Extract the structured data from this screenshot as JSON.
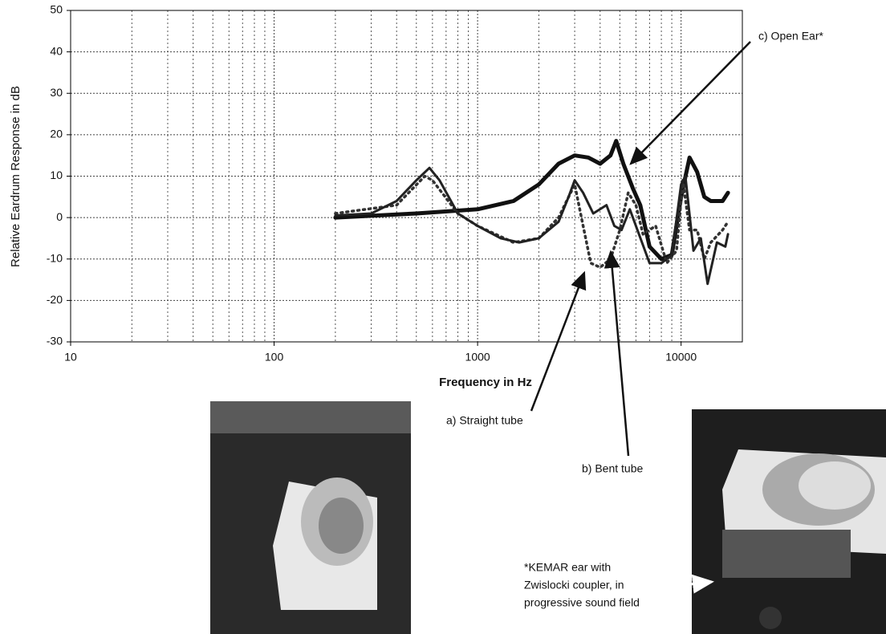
{
  "chart_data": {
    "type": "line",
    "x_label": "Frequency in Hz",
    "y_label": "Relative Eardrum Response in dB",
    "log_x": true,
    "grid": true,
    "minor_grid": true,
    "xlim": [
      10,
      20000
    ],
    "ylim": [
      -30,
      50
    ],
    "xticks": [
      10,
      100,
      1000,
      10000
    ],
    "yticks": [
      -30,
      -20,
      -10,
      0,
      10,
      20,
      30,
      40,
      50
    ],
    "series": [
      {
        "name": "c) Open Ear*",
        "color": "#111111",
        "width": 5,
        "dashed": false,
        "x": [
          200,
          500,
          1000,
          1500,
          2000,
          2500,
          3000,
          3500,
          4000,
          4500,
          4800,
          5200,
          5800,
          6300,
          7000,
          8000,
          9000,
          10000,
          11000,
          12000,
          13000,
          14000,
          16000,
          17000
        ],
        "values": [
          0,
          1,
          2,
          4,
          8,
          13,
          15,
          14.5,
          13,
          15,
          18.5,
          13,
          7,
          3,
          -7,
          -10,
          -9,
          5,
          14.5,
          11,
          5,
          4,
          4,
          6
        ]
      },
      {
        "name": "a) Straight tube",
        "color": "#333333",
        "width": 3.5,
        "dashed": true,
        "x": [
          200,
          400,
          550,
          600,
          800,
          1000,
          1500,
          2000,
          2500,
          3000,
          3300,
          3600,
          4000,
          4500,
          5000,
          5500,
          6000,
          6500,
          7500,
          8500,
          9500,
          10200,
          11000,
          12000,
          13000,
          14000,
          16000,
          17000
        ],
        "values": [
          1,
          3,
          10,
          9,
          1,
          -2,
          -6,
          -5,
          0,
          8,
          -2,
          -11,
          -12,
          -10,
          -3,
          6,
          3,
          -4,
          -2,
          -11,
          -8,
          9,
          -3,
          -3,
          -10,
          -6,
          -3,
          -1
        ]
      },
      {
        "name": "b) Bent tube",
        "color": "#222222",
        "width": 3,
        "dashed": false,
        "x": [
          200,
          300,
          400,
          500,
          580,
          650,
          800,
          1000,
          1300,
          1600,
          2000,
          2500,
          2800,
          3000,
          3300,
          3700,
          4300,
          4700,
          5100,
          5600,
          6000,
          7000,
          8000,
          9000,
          10000,
          10500,
          11500,
          12500,
          13500,
          15000,
          16500,
          17000
        ],
        "values": [
          0.5,
          1,
          4,
          9,
          12,
          9,
          1,
          -2,
          -5,
          -6,
          -5,
          -1,
          5,
          9,
          6,
          1,
          3,
          -2,
          -3,
          2,
          -2,
          -11,
          -11,
          -9,
          8,
          10,
          -8,
          -5,
          -16,
          -6,
          -7,
          -4
        ]
      }
    ],
    "footnote": [
      "*KEMAR ear with",
      "Zwislocki coupler, in",
      "progressive sound field"
    ]
  }
}
